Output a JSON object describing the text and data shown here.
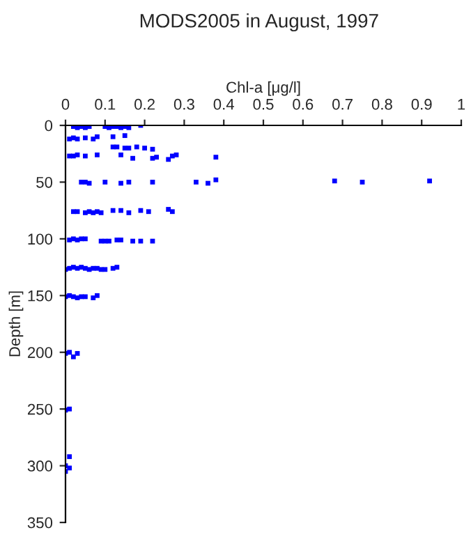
{
  "chart_data": {
    "type": "scatter",
    "title": "MODS2005 in August, 1997",
    "xlabel": "Chl-a [μg/l]",
    "ylabel": "Depth [m]",
    "x": [
      0.02,
      0.03,
      0.04,
      0.05,
      0.06,
      0.1,
      0.11,
      0.12,
      0.13,
      0.14,
      0.15,
      0.16,
      0.19,
      0.01,
      0.02,
      0.03,
      0.05,
      0.07,
      0.08,
      0.12,
      0.15,
      0.12,
      0.13,
      0.15,
      0.16,
      0.18,
      0.2,
      0.22,
      0.01,
      0.02,
      0.03,
      0.05,
      0.08,
      0.14,
      0.17,
      0.22,
      0.23,
      0.26,
      0.27,
      0.28,
      0.38,
      0.04,
      0.05,
      0.06,
      0.1,
      0.14,
      0.16,
      0.22,
      0.33,
      0.36,
      0.38,
      0.68,
      0.75,
      0.92,
      0.02,
      0.03,
      0.05,
      0.06,
      0.07,
      0.08,
      0.09,
      0.12,
      0.14,
      0.16,
      0.19,
      0.21,
      0.26,
      0.27,
      0.01,
      0.02,
      0.03,
      0.04,
      0.05,
      0.09,
      0.1,
      0.11,
      0.13,
      0.14,
      0.17,
      0.19,
      0.22,
      0,
      0.01,
      0.02,
      0.03,
      0.04,
      0.05,
      0.06,
      0.07,
      0.08,
      0.09,
      0.1,
      0.12,
      0.13,
      0,
      0.01,
      0.02,
      0.03,
      0.04,
      0.05,
      0.07,
      0.08,
      0,
      0.01,
      0.02,
      0.03,
      0,
      0.01,
      0.01,
      0,
      0.01,
      0
    ],
    "values": [
      1,
      2,
      1,
      2,
      1,
      1,
      2,
      1,
      1,
      2,
      1,
      2,
      0,
      12,
      11,
      12,
      11,
      12,
      10,
      10,
      9,
      19,
      19,
      20,
      20,
      19,
      20,
      21,
      27,
      27,
      26,
      27,
      26,
      26,
      29,
      29,
      28,
      30,
      27,
      26,
      28,
      50,
      50,
      51,
      50,
      51,
      50,
      50,
      50,
      51,
      48,
      49,
      50,
      49,
      76,
      76,
      77,
      76,
      77,
      76,
      77,
      75,
      75,
      77,
      75,
      76,
      74,
      76,
      101,
      100,
      101,
      100,
      100,
      102,
      102,
      102,
      101,
      101,
      102,
      102,
      102,
      127,
      126,
      125,
      126,
      125,
      126,
      127,
      126,
      126,
      127,
      127,
      126,
      125,
      151,
      150,
      151,
      152,
      151,
      151,
      152,
      150,
      201,
      200,
      204,
      201,
      251,
      250,
      292,
      300,
      302,
      305
    ],
    "color": "#0000ff",
    "marker": "square",
    "xlim": [
      0,
      1
    ],
    "xticks": [
      0,
      0.1,
      0.2,
      0.3,
      0.4,
      0.5,
      0.6,
      0.7,
      0.8,
      0.9,
      1
    ],
    "ylim": [
      350,
      0
    ],
    "yticks": [
      0,
      50,
      100,
      150,
      200,
      250,
      300,
      350
    ],
    "grid": false
  }
}
